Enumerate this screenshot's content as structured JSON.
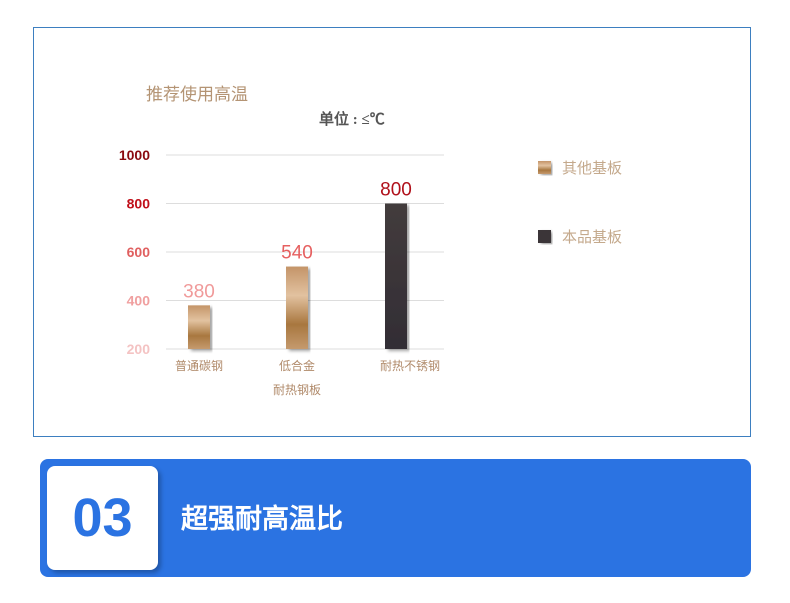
{
  "chart_data": {
    "type": "bar",
    "title": "推荐使用高温",
    "subtitle": "单位 : ≤℃",
    "categories": [
      "普通碳钢",
      "低合金耐热钢板",
      "耐热不锈钢"
    ],
    "category_lines": [
      [
        "普通碳钢"
      ],
      [
        "低合金",
        "耐热钢板"
      ],
      [
        "耐热不锈钢"
      ]
    ],
    "values": [
      380,
      540,
      800
    ],
    "value_labels": [
      "380",
      "540",
      "800"
    ],
    "series_legend": [
      "其他基板",
      "其他基板",
      "本品基板"
    ],
    "yticks": [
      200,
      400,
      600,
      800,
      1000
    ],
    "ylim": [
      200,
      1000
    ],
    "grid": true,
    "legend": [
      {
        "name": "其他基板",
        "color": "#b8895a"
      },
      {
        "name": "本品基板",
        "color": "#3a3538"
      }
    ],
    "legend_placement": "right",
    "tick_colors": [
      "#f4c3c3",
      "#f0a0a0",
      "#e06060",
      "#c0101a",
      "#8a0a10"
    ],
    "label_colors": [
      "#f09a9a",
      "#e66060",
      "#b0101a"
    ]
  },
  "banner": {
    "number": "03",
    "title": "超强耐高温比",
    "color": "#2b73e2"
  }
}
